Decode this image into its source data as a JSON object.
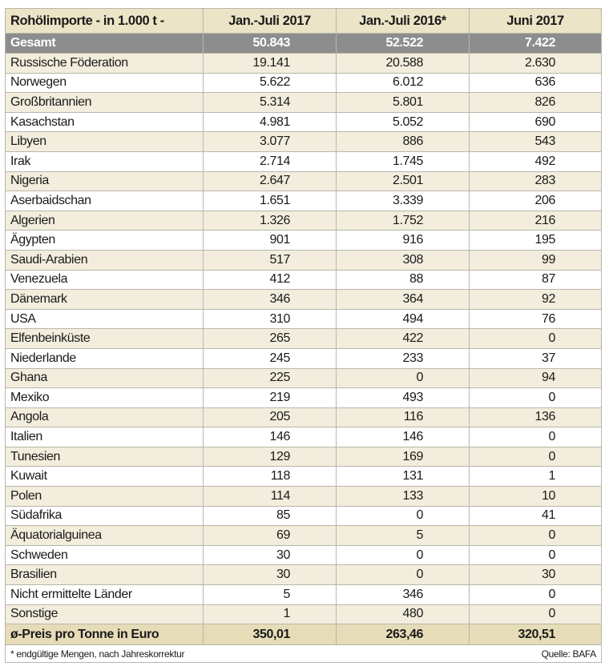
{
  "header": {
    "title": "Rohölimporte - in 1.000 t -",
    "columns": [
      "Jan.-Juli 2017",
      "Jan.-Juli 2016*",
      "Juni 2017"
    ]
  },
  "total": {
    "label": "Gesamt",
    "values": [
      "50.843",
      "52.522",
      "7.422"
    ]
  },
  "rows": [
    {
      "label": "Russische Föderation",
      "values": [
        "19.141",
        "20.588",
        "2.630"
      ]
    },
    {
      "label": "Norwegen",
      "values": [
        "5.622",
        "6.012",
        "636"
      ]
    },
    {
      "label": "Großbritannien",
      "values": [
        "5.314",
        "5.801",
        "826"
      ]
    },
    {
      "label": "Kasachstan",
      "values": [
        "4.981",
        "5.052",
        "690"
      ]
    },
    {
      "label": "Libyen",
      "values": [
        "3.077",
        "886",
        "543"
      ]
    },
    {
      "label": "Irak",
      "values": [
        "2.714",
        "1.745",
        "492"
      ]
    },
    {
      "label": "Nigeria",
      "values": [
        "2.647",
        "2.501",
        "283"
      ]
    },
    {
      "label": "Aserbaidschan",
      "values": [
        "1.651",
        "3.339",
        "206"
      ]
    },
    {
      "label": "Algerien",
      "values": [
        "1.326",
        "1.752",
        "216"
      ]
    },
    {
      "label": "Ägypten",
      "values": [
        "901",
        "916",
        "195"
      ]
    },
    {
      "label": "Saudi-Arabien",
      "values": [
        "517",
        "308",
        "99"
      ]
    },
    {
      "label": "Venezuela",
      "values": [
        "412",
        "88",
        "87"
      ]
    },
    {
      "label": "Dänemark",
      "values": [
        "346",
        "364",
        "92"
      ]
    },
    {
      "label": "USA",
      "values": [
        "310",
        "494",
        "76"
      ]
    },
    {
      "label": "Elfenbeinküste",
      "values": [
        "265",
        "422",
        "0"
      ]
    },
    {
      "label": "Niederlande",
      "values": [
        "245",
        "233",
        "37"
      ]
    },
    {
      "label": "Ghana",
      "values": [
        "225",
        "0",
        "94"
      ]
    },
    {
      "label": "Mexiko",
      "values": [
        "219",
        "493",
        "0"
      ]
    },
    {
      "label": "Angola",
      "values": [
        "205",
        "116",
        "136"
      ]
    },
    {
      "label": "Italien",
      "values": [
        "146",
        "146",
        "0"
      ]
    },
    {
      "label": "Tunesien",
      "values": [
        "129",
        "169",
        "0"
      ]
    },
    {
      "label": "Kuwait",
      "values": [
        "118",
        "131",
        "1"
      ]
    },
    {
      "label": "Polen",
      "values": [
        "114",
        "133",
        "10"
      ]
    },
    {
      "label": "Südafrika",
      "values": [
        "85",
        "0",
        "41"
      ]
    },
    {
      "label": "Äquatorialguinea",
      "values": [
        "69",
        "5",
        "0"
      ]
    },
    {
      "label": "Schweden",
      "values": [
        "30",
        "0",
        "0"
      ]
    },
    {
      "label": "Brasilien",
      "values": [
        "30",
        "0",
        "30"
      ]
    },
    {
      "label": "Nicht ermittelte Länder",
      "values": [
        "5",
        "346",
        "0"
      ]
    },
    {
      "label": "Sonstige",
      "values": [
        "1",
        "480",
        "0"
      ]
    }
  ],
  "price": {
    "label": "ø-Preis pro Tonne in Euro",
    "values": [
      "350,01",
      "263,46",
      "320,51"
    ]
  },
  "footer": {
    "note": "* endgültige Mengen, nach Jahreskorrektur",
    "source": "Quelle: BAFA"
  }
}
